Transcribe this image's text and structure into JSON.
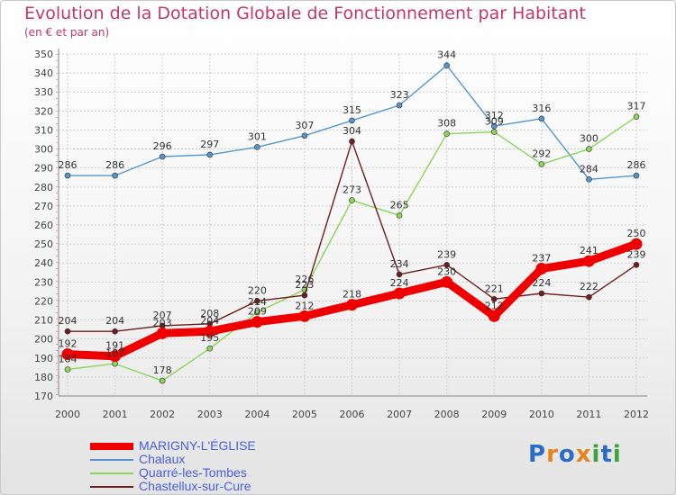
{
  "header": {
    "title": "Evolution de la Dotation Globale de Fonctionnement par Habitant",
    "subtitle": "(en € et par an)"
  },
  "logo": {
    "text": "Proxiti",
    "letters": [
      "P",
      "r",
      "o",
      "x",
      "i",
      "t",
      "i"
    ],
    "colors": [
      "#2c6cc8",
      "#e8821c",
      "#2c6cc8",
      "#e8821c",
      "#3aa53a",
      "#2c6cc8",
      "#3aa53a"
    ]
  },
  "chart_data": {
    "type": "line",
    "title": "Evolution de la Dotation Globale de Fonctionnement par Habitant",
    "subtitle": "(en € et par an)",
    "x": [
      "2000",
      "2001",
      "2002",
      "2003",
      "2004",
      "2005",
      "2006",
      "2007",
      "2008",
      "2009",
      "2010",
      "2011",
      "2012"
    ],
    "ylim": [
      170,
      350
    ],
    "yticks": [
      170,
      180,
      190,
      200,
      210,
      220,
      230,
      240,
      250,
      260,
      270,
      280,
      290,
      300,
      310,
      320,
      330,
      340,
      350
    ],
    "grid": true,
    "legend_position": "bottom-left",
    "series": [
      {
        "name": "MARIGNY-L'ÉGLISE",
        "color": "#ee0000",
        "emphasis": true,
        "values": [
          192,
          191,
          203,
          204,
          209,
          212,
          218,
          224,
          230,
          212,
          237,
          241,
          250
        ],
        "labels": [
          "192",
          "191",
          "203",
          "204",
          "209",
          "212",
          "218",
          "224",
          "230",
          "212",
          "237",
          "241",
          "250"
        ]
      },
      {
        "name": "Chalaux",
        "color": "#5596cf",
        "values": [
          286,
          286,
          296,
          297,
          301,
          307,
          315,
          323,
          344,
          312,
          316,
          284,
          286
        ],
        "labels": [
          "286",
          "286",
          "296",
          "297",
          "301",
          "307",
          "315",
          "323",
          "344",
          "312",
          "316",
          "284",
          "286"
        ]
      },
      {
        "name": "Quarré-les-Tombes",
        "color": "#8ad55a",
        "values": [
          184,
          187,
          178,
          195,
          214,
          226,
          273,
          265,
          308,
          309,
          292,
          300,
          317
        ],
        "labels": [
          "184",
          "187",
          "178",
          "195",
          "214",
          "226",
          "273",
          "265",
          "308",
          "309",
          "292",
          "300",
          "317"
        ]
      },
      {
        "name": "Chastellux-sur-Cure",
        "color": "#6e1e1e",
        "values": [
          204,
          204,
          207,
          208,
          220,
          223,
          304,
          234,
          239,
          221,
          224,
          222,
          239
        ],
        "labels": [
          "204",
          "204",
          "207",
          "208",
          "220",
          "223",
          "304",
          "234",
          "239",
          "221",
          "224",
          "222",
          "239"
        ]
      }
    ]
  }
}
